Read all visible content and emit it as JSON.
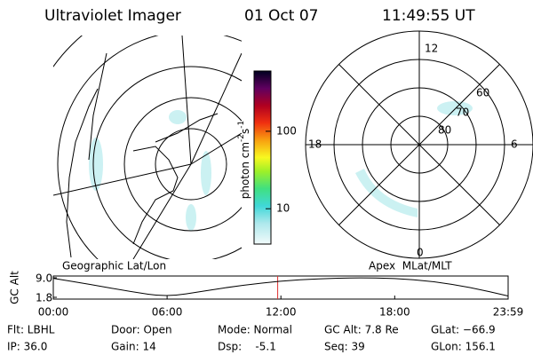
{
  "header": {
    "title": "Ultraviolet Imager",
    "date": "01 Oct 07",
    "time": "11:49:55 UT"
  },
  "left_panel": {
    "label": "Geographic Lat/Lon"
  },
  "right_panel": {
    "label": "Apex  MLat/MLT",
    "mlt_labels": [
      "12",
      "6",
      "0",
      "18"
    ],
    "lat_labels": [
      "80",
      "70",
      "60"
    ]
  },
  "colorbar": {
    "label": "photon cm",
    "exp1": "-2",
    "mid": "s",
    "exp2": "-1",
    "log": true,
    "ylim": [
      3.5,
      600
    ],
    "yticks": [
      10,
      100
    ]
  },
  "chart_data": {
    "type": "line",
    "ylabel": "GC Alt",
    "x": [
      0,
      2,
      4,
      6,
      8,
      10,
      12,
      14,
      16,
      18,
      20,
      22,
      23.98
    ],
    "values": [
      8.8,
      6.5,
      4.0,
      1.9,
      4.2,
      6.3,
      7.8,
      8.7,
      9.0,
      8.8,
      7.7,
      5.5,
      2.3
    ],
    "color": "#000000",
    "xlim": [
      0,
      23.98
    ],
    "xticks": [
      {
        "value": 0,
        "label": "00:00"
      },
      {
        "value": 6,
        "label": "06:00"
      },
      {
        "value": 12,
        "label": "12:00"
      },
      {
        "value": 18,
        "label": "18:00"
      },
      {
        "value": 23.98,
        "label": "23:59"
      }
    ],
    "ylim": [
      1.8,
      9.0
    ],
    "yticks": [
      {
        "value": 9.0,
        "label": "9.0"
      },
      1.8
    ],
    "marker_x": 11.83,
    "marker_color": "#e03030"
  },
  "info": {
    "rows": [
      [
        "Flt: LBHL",
        "Door: Open",
        "Mode: Normal",
        "GC Alt: 7.8 Re",
        "GLat: −66.9"
      ],
      [
        "IP: 36.0",
        "Gain: 14",
        "Dsp:    -5.1",
        "Seq: 39",
        "GLon: 156.1"
      ]
    ]
  }
}
